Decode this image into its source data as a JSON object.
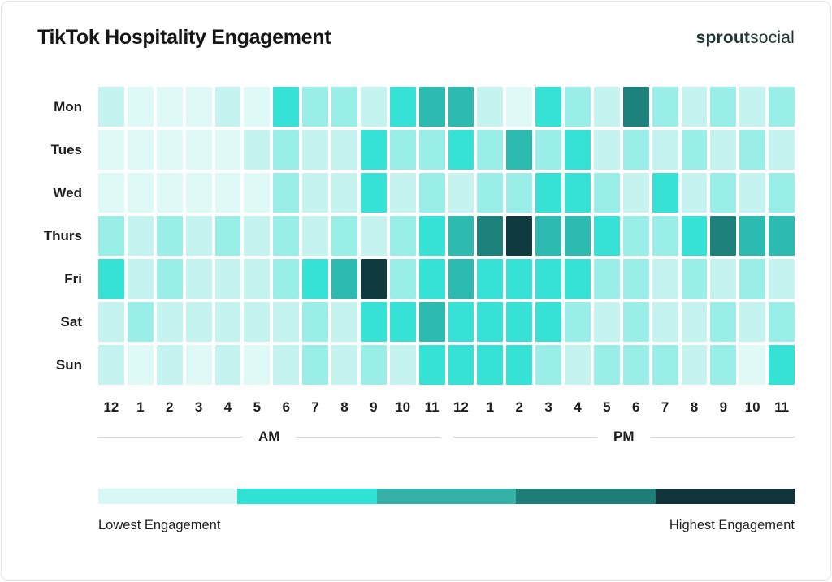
{
  "header": {
    "title": "TikTok Hospitality Engagement",
    "brand": {
      "bold": "sprout",
      "regular": "social"
    }
  },
  "chart_data": {
    "type": "heatmap",
    "title": "TikTok Hospitality Engagement",
    "rows": [
      "Mon",
      "Tues",
      "Wed",
      "Thurs",
      "Fri",
      "Sat",
      "Sun"
    ],
    "columns": [
      "12",
      "1",
      "2",
      "3",
      "4",
      "5",
      "6",
      "7",
      "8",
      "9",
      "10",
      "11",
      "12",
      "1",
      "2",
      "3",
      "4",
      "5",
      "6",
      "7",
      "8",
      "9",
      "10",
      "11"
    ],
    "column_groups": [
      {
        "label": "AM",
        "span": 12
      },
      {
        "label": "PM",
        "span": 12
      }
    ],
    "scale": {
      "levels": 7,
      "palette": [
        "#dff9f7",
        "#c5f3ef",
        "#99efe8",
        "#35e2d5",
        "#2dbbb1",
        "#1d827c",
        "#0e3a40"
      ],
      "legend_colors": [
        "#d7f8f4",
        "#30e2d3",
        "#35b1a8",
        "#1f7d77",
        "#11333a"
      ],
      "min_label": "Lowest Engagement",
      "max_label": "Highest Engagement"
    },
    "values": [
      [
        2,
        1,
        1,
        1,
        2,
        1,
        4,
        3,
        3,
        2,
        4,
        5,
        5,
        2,
        1,
        4,
        3,
        2,
        6,
        3,
        2,
        3,
        2,
        3
      ],
      [
        1,
        1,
        1,
        1,
        1,
        2,
        3,
        2,
        2,
        4,
        3,
        3,
        4,
        3,
        5,
        3,
        4,
        2,
        3,
        2,
        3,
        2,
        3,
        2
      ],
      [
        1,
        1,
        1,
        1,
        1,
        1,
        3,
        2,
        2,
        4,
        2,
        3,
        2,
        3,
        3,
        4,
        4,
        3,
        2,
        4,
        2,
        3,
        2,
        3
      ],
      [
        3,
        2,
        3,
        2,
        3,
        2,
        3,
        2,
        3,
        2,
        3,
        4,
        5,
        6,
        7,
        5,
        5,
        4,
        3,
        3,
        4,
        6,
        5,
        5
      ],
      [
        4,
        2,
        3,
        2,
        2,
        2,
        3,
        4,
        5,
        7,
        3,
        4,
        5,
        4,
        4,
        4,
        4,
        3,
        3,
        2,
        3,
        2,
        3,
        2
      ],
      [
        2,
        3,
        2,
        2,
        2,
        2,
        2,
        3,
        2,
        4,
        4,
        5,
        4,
        4,
        4,
        4,
        3,
        2,
        3,
        2,
        2,
        3,
        2,
        3
      ],
      [
        2,
        1,
        2,
        1,
        2,
        1,
        2,
        3,
        2,
        3,
        2,
        4,
        4,
        4,
        4,
        3,
        2,
        3,
        3,
        3,
        2,
        3,
        1,
        4
      ]
    ]
  }
}
